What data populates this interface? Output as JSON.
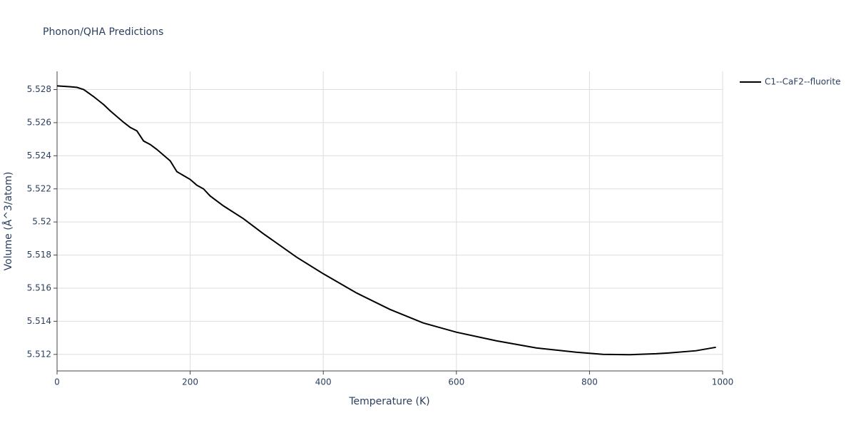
{
  "chart_data": {
    "type": "line",
    "title": "Phonon/QHA Predictions",
    "x_label": "Temperature (K)",
    "y_label": "Volume (Å^3/atom)",
    "xlim": [
      0,
      1000
    ],
    "xticks": [
      0,
      200,
      400,
      600,
      800,
      1000
    ],
    "ylim": [
      5.511,
      5.5291
    ],
    "yticks": [
      5.512,
      5.514,
      5.516,
      5.518,
      5.52,
      5.522,
      5.524,
      5.526,
      5.528
    ],
    "grid": true,
    "legend": "top-right",
    "series": [
      {
        "name": "C1--CaF2--fluorite",
        "color": "#000000",
        "x": [
          0,
          20,
          30,
          40,
          55,
          70,
          80,
          100,
          110,
          120,
          130,
          140,
          150,
          170,
          180,
          200,
          210,
          220,
          230,
          250,
          280,
          310,
          360,
          400,
          450,
          500,
          550,
          600,
          660,
          720,
          780,
          820,
          860,
          900,
          920,
          960,
          990
        ],
        "values": [
          5.52822,
          5.52817,
          5.52813,
          5.528,
          5.52757,
          5.52709,
          5.52671,
          5.52602,
          5.52571,
          5.5255,
          5.52489,
          5.52468,
          5.52438,
          5.52369,
          5.52304,
          5.52257,
          5.52222,
          5.522,
          5.52157,
          5.52097,
          5.5202,
          5.51929,
          5.51787,
          5.51687,
          5.51571,
          5.51472,
          5.5139,
          5.51334,
          5.51282,
          5.51239,
          5.51213,
          5.512,
          5.51198,
          5.51204,
          5.51209,
          5.51222,
          5.51243
        ]
      }
    ]
  }
}
